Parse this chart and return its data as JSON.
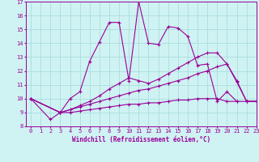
{
  "xlabel": "Windchill (Refroidissement éolien,°C)",
  "xlim": [
    -0.5,
    23
  ],
  "ylim": [
    8,
    17
  ],
  "xticks": [
    0,
    1,
    2,
    3,
    4,
    5,
    6,
    7,
    8,
    9,
    10,
    11,
    12,
    13,
    14,
    15,
    16,
    17,
    18,
    19,
    20,
    21,
    22,
    23
  ],
  "yticks": [
    8,
    9,
    10,
    11,
    12,
    13,
    14,
    15,
    16,
    17
  ],
  "bg_color": "#cff2f2",
  "line_color": "#990099",
  "grid_color": "#aadede",
  "lines": [
    {
      "x": [
        0,
        2,
        3,
        4,
        5,
        6,
        7,
        8,
        9,
        10,
        11,
        12,
        13,
        14,
        15,
        16,
        17,
        18,
        19,
        20,
        21
      ],
      "y": [
        10,
        8.5,
        9.0,
        10.0,
        10.5,
        12.7,
        14.1,
        15.5,
        15.5,
        11.3,
        17.0,
        14.0,
        13.9,
        15.2,
        15.1,
        14.5,
        12.4,
        12.5,
        9.8,
        10.5,
        9.8
      ]
    },
    {
      "x": [
        0,
        3,
        4,
        5,
        6,
        7,
        8,
        9,
        10,
        11,
        12,
        13,
        14,
        15,
        16,
        17,
        18,
        19,
        20,
        21,
        22,
        23
      ],
      "y": [
        10,
        9.0,
        9.2,
        9.5,
        9.8,
        10.2,
        10.7,
        11.1,
        11.5,
        11.3,
        11.1,
        11.4,
        11.8,
        12.2,
        12.6,
        13.0,
        13.3,
        13.3,
        12.5,
        11.3,
        9.8,
        9.8
      ]
    },
    {
      "x": [
        0,
        3,
        4,
        5,
        6,
        7,
        8,
        9,
        10,
        11,
        12,
        13,
        14,
        15,
        16,
        17,
        18,
        19,
        20,
        21,
        22,
        23
      ],
      "y": [
        10,
        9.0,
        9.2,
        9.4,
        9.6,
        9.8,
        10.0,
        10.2,
        10.4,
        10.6,
        10.7,
        10.9,
        11.1,
        11.3,
        11.5,
        11.8,
        12.0,
        12.3,
        12.5,
        11.2,
        9.8,
        9.8
      ]
    },
    {
      "x": [
        0,
        3,
        4,
        5,
        6,
        7,
        8,
        9,
        10,
        11,
        12,
        13,
        14,
        15,
        16,
        17,
        18,
        19,
        20,
        21,
        22,
        23
      ],
      "y": [
        10,
        9.0,
        9.0,
        9.1,
        9.2,
        9.3,
        9.4,
        9.5,
        9.6,
        9.6,
        9.7,
        9.7,
        9.8,
        9.9,
        9.9,
        10.0,
        10.0,
        10.0,
        9.8,
        9.8,
        9.8,
        9.8
      ]
    }
  ]
}
